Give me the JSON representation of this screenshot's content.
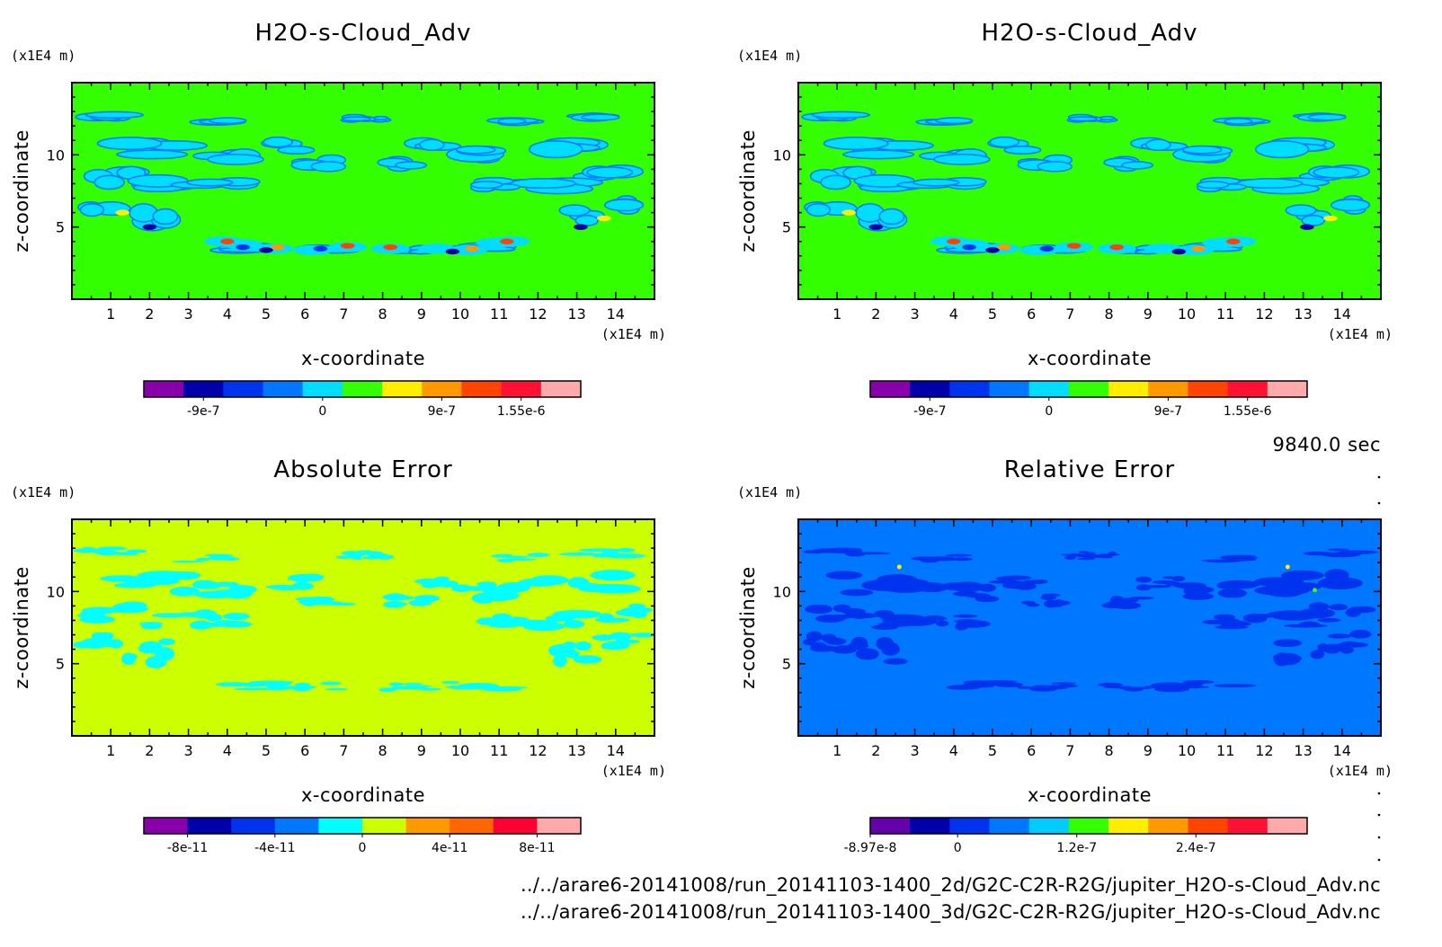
{
  "figure": {
    "time_label": "9840.0 sec",
    "file_lines": [
      "../../arare6-20141008/run_20141103-1400_2d/G2C-C2R-R2G/jupiter_H2O-s-Cloud_Adv.nc",
      "../../arare6-20141008/run_20141103-1400_3d/G2C-C2R-R2G/jupiter_H2O-s-Cloud_Adv.nc"
    ]
  },
  "chart_data": [
    {
      "type": "heatmap",
      "title": "H2O-s-Cloud_Adv",
      "xlabel": "x-coordinate",
      "ylabel": "z-coordinate",
      "x_unit": "(x1E4 m)",
      "y_unit": "(x1E4 m)",
      "xlim": [
        0,
        15
      ],
      "ylim": [
        0,
        15
      ],
      "xticks": [
        1,
        2,
        3,
        4,
        5,
        6,
        7,
        8,
        9,
        10,
        11,
        12,
        13,
        14
      ],
      "yticks": [
        5,
        10
      ],
      "background_color": "#33ff00",
      "colorbar": {
        "colors": [
          "#8800aa",
          "#0000aa",
          "#0033ee",
          "#0077ff",
          "#00ddff",
          "#33ff00",
          "#ffee00",
          "#ff9900",
          "#ff4400",
          "#ff1133",
          "#ffaaaa"
        ],
        "tick_labels": [
          "-9e-7",
          "0",
          "9e-7",
          "1.55e-6"
        ],
        "tick_positions": [
          1.5,
          4.5,
          7.5,
          9.5
        ]
      }
    },
    {
      "type": "heatmap",
      "title": "H2O-s-Cloud_Adv",
      "xlabel": "x-coordinate",
      "ylabel": "z-coordinate",
      "x_unit": "(x1E4 m)",
      "y_unit": "(x1E4 m)",
      "xlim": [
        0,
        15
      ],
      "ylim": [
        0,
        15
      ],
      "xticks": [
        1,
        2,
        3,
        4,
        5,
        6,
        7,
        8,
        9,
        10,
        11,
        12,
        13,
        14
      ],
      "yticks": [
        5,
        10
      ],
      "background_color": "#33ff00",
      "colorbar": {
        "colors": [
          "#8800aa",
          "#0000aa",
          "#0033ee",
          "#0077ff",
          "#00ddff",
          "#33ff00",
          "#ffee00",
          "#ff9900",
          "#ff4400",
          "#ff1133",
          "#ffaaaa"
        ],
        "tick_labels": [
          "-9e-7",
          "0",
          "9e-7",
          "1.55e-6"
        ],
        "tick_positions": [
          1.5,
          4.5,
          7.5,
          9.5
        ]
      }
    },
    {
      "type": "heatmap",
      "title": "Absolute Error",
      "xlabel": "x-coordinate",
      "ylabel": "z-coordinate",
      "x_unit": "(x1E4 m)",
      "y_unit": "(x1E4 m)",
      "xlim": [
        0,
        15
      ],
      "ylim": [
        0,
        15
      ],
      "xticks": [
        1,
        2,
        3,
        4,
        5,
        6,
        7,
        8,
        9,
        10,
        11,
        12,
        13,
        14
      ],
      "yticks": [
        5,
        10
      ],
      "background_color": "#ccff00",
      "colorbar": {
        "colors": [
          "#8800aa",
          "#0000aa",
          "#0033ee",
          "#0077ff",
          "#00ffff",
          "#ccff00",
          "#ff9900",
          "#ff6600",
          "#ff0033",
          "#ffaaaa"
        ],
        "tick_labels": [
          "-8e-11",
          "-4e-11",
          "0",
          "4e-11",
          "8e-11"
        ],
        "tick_positions": [
          1,
          3,
          5,
          7,
          9
        ]
      }
    },
    {
      "type": "heatmap",
      "title": "Relative Error",
      "xlabel": "x-coordinate",
      "ylabel": "z-coordinate",
      "x_unit": "(x1E4 m)",
      "y_unit": "(x1E4 m)",
      "xlim": [
        0,
        15
      ],
      "ylim": [
        0,
        15
      ],
      "xticks": [
        1,
        2,
        3,
        4,
        5,
        6,
        7,
        8,
        9,
        10,
        11,
        12,
        13,
        14
      ],
      "yticks": [
        5,
        10
      ],
      "background_color": "#0077ff",
      "colorbar": {
        "colors": [
          "#6600aa",
          "#0000aa",
          "#0033ee",
          "#0077ff",
          "#00ccff",
          "#33ff00",
          "#ffee00",
          "#ff9900",
          "#ff4400",
          "#ff1133",
          "#ffaaaa"
        ],
        "tick_labels": [
          "-8.97e-8",
          "0",
          "1.2e-7",
          "2.4e-7"
        ],
        "tick_positions": [
          0,
          2.2,
          5.2,
          8.2
        ]
      }
    }
  ]
}
